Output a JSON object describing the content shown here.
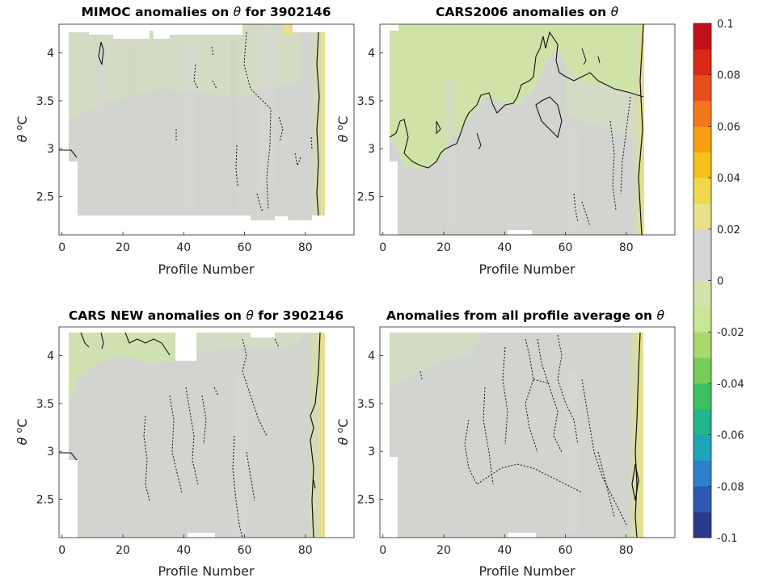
{
  "colorbar": {
    "ticks": [
      "0.1",
      "0.08",
      "0.06",
      "0.04",
      "0.02",
      "0",
      "-0.02",
      "-0.04",
      "-0.06",
      "-0.08",
      "-0.1"
    ],
    "range": [
      -0.1,
      0.1
    ],
    "colors": [
      "#2b3a8a",
      "#2f58b0",
      "#2f7fcf",
      "#1fa3b8",
      "#20b58a",
      "#3cc064",
      "#78cc5a",
      "#a8d96a",
      "#c9e596",
      "#d2e3ac",
      "#d6d6d6",
      "#d6d6d6",
      "#e6e28a",
      "#f0d84e",
      "#f6c11a",
      "#f79e13",
      "#f2771c",
      "#e84d1c",
      "#d82a17",
      "#c0101a"
    ]
  },
  "chart_data": [
    {
      "type": "heatmap",
      "title_parts": [
        "MIMOC anomalies on ",
        "θ",
        "  for 3902146"
      ],
      "xlabel": "Profile Number",
      "ylabel": "θ °C",
      "ylabel_parts": [
        "θ",
        " ",
        "o",
        "C"
      ],
      "xlim": [
        -1,
        96
      ],
      "ylim": [
        2.1,
        4.3
      ],
      "xticks": [
        "0",
        "20",
        "40",
        "60",
        "80"
      ],
      "yticks": [
        "2.5",
        "3",
        "3.5",
        "4"
      ],
      "ytick_values": [
        2.5,
        3,
        3.5,
        4
      ],
      "xtick_values": [
        0,
        20,
        40,
        60,
        80
      ],
      "field_value_range": [
        -0.01,
        0.03
      ],
      "contours": "solid = positive, dotted = negative"
    },
    {
      "type": "heatmap",
      "title_parts": [
        "CARS2006 anomalies on ",
        "θ",
        ""
      ],
      "xlabel": "Profile Number",
      "ylabel": "θ °C",
      "ylabel_parts": [
        "θ",
        " ",
        "o",
        "C"
      ],
      "xlim": [
        -1,
        96
      ],
      "ylim": [
        2.1,
        4.3
      ],
      "xticks": [
        "0",
        "20",
        "40",
        "60",
        "80"
      ],
      "yticks": [
        "2.5",
        "3",
        "3.5",
        "4"
      ],
      "ytick_values": [
        2.5,
        3,
        3.5,
        4
      ],
      "xtick_values": [
        0,
        20,
        40,
        60,
        80
      ],
      "field_value_range": [
        -0.015,
        0.02
      ],
      "contours": "solid = positive, dotted = negative"
    },
    {
      "type": "heatmap",
      "title_parts": [
        "CARS NEW anomalies on ",
        "θ",
        " for 3902146"
      ],
      "xlabel": "Profile Number",
      "ylabel": "θ °C",
      "ylabel_parts": [
        "θ",
        " ",
        "o",
        "C"
      ],
      "xlim": [
        -1,
        96
      ],
      "ylim": [
        2.1,
        4.3
      ],
      "xticks": [
        "0",
        "20",
        "40",
        "60",
        "80"
      ],
      "yticks": [
        "2.5",
        "3",
        "3.5",
        "4"
      ],
      "ytick_values": [
        2.5,
        3,
        3.5,
        4
      ],
      "xtick_values": [
        0,
        20,
        40,
        60,
        80
      ],
      "field_value_range": [
        -0.01,
        0.03
      ],
      "contours": "solid = positive, dotted = negative"
    },
    {
      "type": "heatmap",
      "title_parts": [
        "Anomalies from all profile average on ",
        "θ",
        ""
      ],
      "xlabel": "Profile Number",
      "ylabel": "θ °C",
      "ylabel_parts": [
        "θ",
        " ",
        "o",
        "C"
      ],
      "xlim": [
        -1,
        96
      ],
      "ylim": [
        2.1,
        4.3
      ],
      "xticks": [
        "0",
        "20",
        "40",
        "60",
        "80"
      ],
      "yticks": [
        "2.5",
        "3",
        "3.5",
        "4"
      ],
      "ytick_values": [
        2.5,
        3,
        3.5,
        4
      ],
      "xtick_values": [
        0,
        20,
        40,
        60,
        80
      ],
      "field_value_range": [
        -0.01,
        0.02
      ],
      "contours": "solid = positive, dotted = negative"
    }
  ]
}
